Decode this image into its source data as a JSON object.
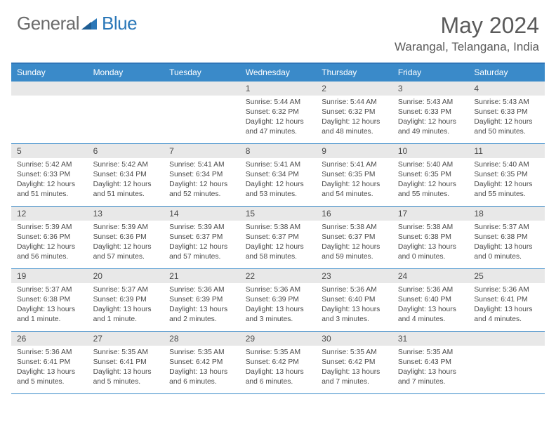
{
  "header": {
    "logo_text_1": "General",
    "logo_text_2": "Blue",
    "logo_color_1": "#6b6b6b",
    "logo_color_2": "#2a77b8",
    "month_title": "May 2024",
    "location": "Warangal, Telangana, India"
  },
  "colors": {
    "accent": "#3a8ac9",
    "accent_border": "#2f76b8",
    "daynum_bg": "#e8e8e8",
    "text": "#4a4a4a",
    "header_text": "#5a5a5a",
    "background": "#ffffff"
  },
  "weekdays": [
    "Sunday",
    "Monday",
    "Tuesday",
    "Wednesday",
    "Thursday",
    "Friday",
    "Saturday"
  ],
  "weeks": [
    [
      {
        "num": "",
        "sr": "",
        "ss": "",
        "dl": ""
      },
      {
        "num": "",
        "sr": "",
        "ss": "",
        "dl": ""
      },
      {
        "num": "",
        "sr": "",
        "ss": "",
        "dl": ""
      },
      {
        "num": "1",
        "sr": "Sunrise: 5:44 AM",
        "ss": "Sunset: 6:32 PM",
        "dl": "Daylight: 12 hours and 47 minutes."
      },
      {
        "num": "2",
        "sr": "Sunrise: 5:44 AM",
        "ss": "Sunset: 6:32 PM",
        "dl": "Daylight: 12 hours and 48 minutes."
      },
      {
        "num": "3",
        "sr": "Sunrise: 5:43 AM",
        "ss": "Sunset: 6:33 PM",
        "dl": "Daylight: 12 hours and 49 minutes."
      },
      {
        "num": "4",
        "sr": "Sunrise: 5:43 AM",
        "ss": "Sunset: 6:33 PM",
        "dl": "Daylight: 12 hours and 50 minutes."
      }
    ],
    [
      {
        "num": "5",
        "sr": "Sunrise: 5:42 AM",
        "ss": "Sunset: 6:33 PM",
        "dl": "Daylight: 12 hours and 51 minutes."
      },
      {
        "num": "6",
        "sr": "Sunrise: 5:42 AM",
        "ss": "Sunset: 6:34 PM",
        "dl": "Daylight: 12 hours and 51 minutes."
      },
      {
        "num": "7",
        "sr": "Sunrise: 5:41 AM",
        "ss": "Sunset: 6:34 PM",
        "dl": "Daylight: 12 hours and 52 minutes."
      },
      {
        "num": "8",
        "sr": "Sunrise: 5:41 AM",
        "ss": "Sunset: 6:34 PM",
        "dl": "Daylight: 12 hours and 53 minutes."
      },
      {
        "num": "9",
        "sr": "Sunrise: 5:41 AM",
        "ss": "Sunset: 6:35 PM",
        "dl": "Daylight: 12 hours and 54 minutes."
      },
      {
        "num": "10",
        "sr": "Sunrise: 5:40 AM",
        "ss": "Sunset: 6:35 PM",
        "dl": "Daylight: 12 hours and 55 minutes."
      },
      {
        "num": "11",
        "sr": "Sunrise: 5:40 AM",
        "ss": "Sunset: 6:35 PM",
        "dl": "Daylight: 12 hours and 55 minutes."
      }
    ],
    [
      {
        "num": "12",
        "sr": "Sunrise: 5:39 AM",
        "ss": "Sunset: 6:36 PM",
        "dl": "Daylight: 12 hours and 56 minutes."
      },
      {
        "num": "13",
        "sr": "Sunrise: 5:39 AM",
        "ss": "Sunset: 6:36 PM",
        "dl": "Daylight: 12 hours and 57 minutes."
      },
      {
        "num": "14",
        "sr": "Sunrise: 5:39 AM",
        "ss": "Sunset: 6:37 PM",
        "dl": "Daylight: 12 hours and 57 minutes."
      },
      {
        "num": "15",
        "sr": "Sunrise: 5:38 AM",
        "ss": "Sunset: 6:37 PM",
        "dl": "Daylight: 12 hours and 58 minutes."
      },
      {
        "num": "16",
        "sr": "Sunrise: 5:38 AM",
        "ss": "Sunset: 6:37 PM",
        "dl": "Daylight: 12 hours and 59 minutes."
      },
      {
        "num": "17",
        "sr": "Sunrise: 5:38 AM",
        "ss": "Sunset: 6:38 PM",
        "dl": "Daylight: 13 hours and 0 minutes."
      },
      {
        "num": "18",
        "sr": "Sunrise: 5:37 AM",
        "ss": "Sunset: 6:38 PM",
        "dl": "Daylight: 13 hours and 0 minutes."
      }
    ],
    [
      {
        "num": "19",
        "sr": "Sunrise: 5:37 AM",
        "ss": "Sunset: 6:38 PM",
        "dl": "Daylight: 13 hours and 1 minute."
      },
      {
        "num": "20",
        "sr": "Sunrise: 5:37 AM",
        "ss": "Sunset: 6:39 PM",
        "dl": "Daylight: 13 hours and 1 minute."
      },
      {
        "num": "21",
        "sr": "Sunrise: 5:36 AM",
        "ss": "Sunset: 6:39 PM",
        "dl": "Daylight: 13 hours and 2 minutes."
      },
      {
        "num": "22",
        "sr": "Sunrise: 5:36 AM",
        "ss": "Sunset: 6:39 PM",
        "dl": "Daylight: 13 hours and 3 minutes."
      },
      {
        "num": "23",
        "sr": "Sunrise: 5:36 AM",
        "ss": "Sunset: 6:40 PM",
        "dl": "Daylight: 13 hours and 3 minutes."
      },
      {
        "num": "24",
        "sr": "Sunrise: 5:36 AM",
        "ss": "Sunset: 6:40 PM",
        "dl": "Daylight: 13 hours and 4 minutes."
      },
      {
        "num": "25",
        "sr": "Sunrise: 5:36 AM",
        "ss": "Sunset: 6:41 PM",
        "dl": "Daylight: 13 hours and 4 minutes."
      }
    ],
    [
      {
        "num": "26",
        "sr": "Sunrise: 5:36 AM",
        "ss": "Sunset: 6:41 PM",
        "dl": "Daylight: 13 hours and 5 minutes."
      },
      {
        "num": "27",
        "sr": "Sunrise: 5:35 AM",
        "ss": "Sunset: 6:41 PM",
        "dl": "Daylight: 13 hours and 5 minutes."
      },
      {
        "num": "28",
        "sr": "Sunrise: 5:35 AM",
        "ss": "Sunset: 6:42 PM",
        "dl": "Daylight: 13 hours and 6 minutes."
      },
      {
        "num": "29",
        "sr": "Sunrise: 5:35 AM",
        "ss": "Sunset: 6:42 PM",
        "dl": "Daylight: 13 hours and 6 minutes."
      },
      {
        "num": "30",
        "sr": "Sunrise: 5:35 AM",
        "ss": "Sunset: 6:42 PM",
        "dl": "Daylight: 13 hours and 7 minutes."
      },
      {
        "num": "31",
        "sr": "Sunrise: 5:35 AM",
        "ss": "Sunset: 6:43 PM",
        "dl": "Daylight: 13 hours and 7 minutes."
      },
      {
        "num": "",
        "sr": "",
        "ss": "",
        "dl": ""
      }
    ]
  ]
}
